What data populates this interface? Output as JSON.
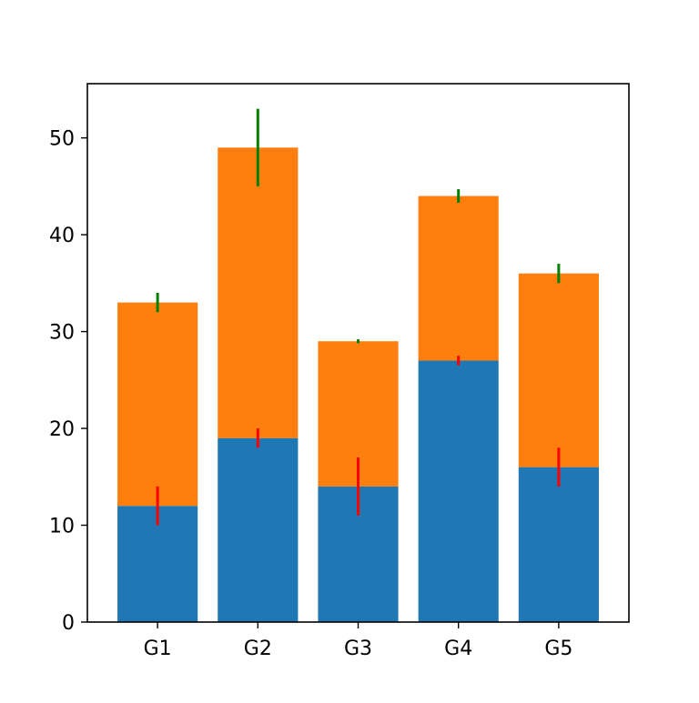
{
  "chart_data": {
    "type": "bar",
    "stacked": true,
    "categories": [
      "G1",
      "G2",
      "G3",
      "G4",
      "G5"
    ],
    "series": [
      {
        "color": "#1f77b4",
        "values": [
          12,
          19,
          14,
          27,
          16
        ],
        "error": [
          2,
          1,
          3,
          0.5,
          2
        ],
        "error_color": "#ff0000"
      },
      {
        "color": "#ff7f0e",
        "values": [
          21,
          30,
          15,
          17,
          20
        ],
        "error": [
          1,
          4,
          0.2,
          0.7,
          1
        ],
        "error_color": "#008000"
      }
    ],
    "ylim": [
      0,
      55.6
    ],
    "yticks": [
      0,
      10,
      20,
      30,
      40,
      50
    ],
    "title": "",
    "xlabel": "",
    "ylabel": "",
    "grid": false,
    "legend": "none"
  }
}
